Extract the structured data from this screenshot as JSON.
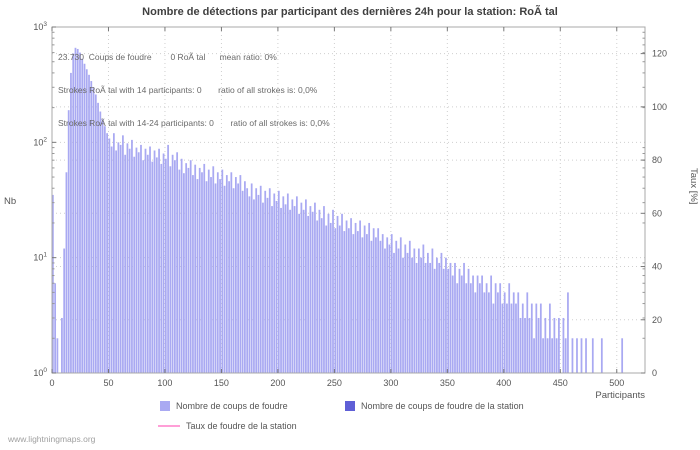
{
  "title": "Nombre de détections par participant des dernières 24h pour la station: RoÃ tal",
  "watermark": "www.lightningmaps.org",
  "annotation": {
    "line1": "23.730  Coups de foudre        0 RoÃ tal      mean ratio: 0%",
    "line2": "Strokes RoÃ tal with 14 participants: 0       ratio of all strokes is: 0,0%",
    "line3": "Strokes RoÃ tal with 14-24 participants: 0       ratio of all strokes is: 0,0%"
  },
  "axes": {
    "x": {
      "label": "Participants",
      "ticks": [
        0,
        50,
        100,
        150,
        200,
        250,
        300,
        350,
        400,
        450,
        500
      ],
      "range": [
        0,
        525
      ]
    },
    "y_left": {
      "label": "Nb",
      "ticks": [
        "10^0",
        "10^1",
        "10^2",
        "10^3"
      ],
      "scale": "log",
      "range": [
        1,
        1000
      ]
    },
    "y_right": {
      "label": "Taux [%]",
      "ticks": [
        0,
        20,
        40,
        60,
        80,
        100,
        120
      ],
      "range": [
        0,
        130
      ]
    }
  },
  "legend": [
    {
      "label": "Nombre de coups de foudre",
      "type": "square",
      "color": "#a9a9f2"
    },
    {
      "label": "Nombre de coups de foudre de la station",
      "type": "square",
      "color": "#5f5fd6"
    },
    {
      "label": "Taux de foudre de la station",
      "type": "line",
      "color": "#ff9fd7"
    }
  ],
  "colors": {
    "bars": "#a9a9f2",
    "station_bars": "#5f5fd6",
    "rate_line": "#ff9fd7",
    "grid": "#cfcfcf",
    "border": "#a8a8a8",
    "text": "#555555"
  },
  "chart_data": {
    "type": "bar",
    "title": "Nombre de détections par participant des dernières 24h pour la station: RoÃ tal",
    "xlabel": "Participants",
    "ylabel": "Nb",
    "y2label": "Taux [%]",
    "yscale": "log10",
    "xlim": [
      0,
      525
    ],
    "ylim": [
      1,
      1000
    ],
    "y2lim": [
      0,
      130
    ],
    "x_start": 0,
    "x_step": 2,
    "station_strokes": 0,
    "mean_ratio_percent": 0,
    "values": [
      35,
      6,
      2,
      1,
      3,
      12,
      55,
      190,
      400,
      590,
      660,
      645,
      600,
      530,
      480,
      430,
      385,
      340,
      300,
      260,
      220,
      185,
      158,
      138,
      120,
      108,
      92,
      120,
      85,
      100,
      95,
      115,
      78,
      98,
      88,
      105,
      75,
      90,
      82,
      95,
      70,
      88,
      78,
      92,
      68,
      85,
      74,
      88,
      65,
      80,
      72,
      95,
      62,
      78,
      70,
      82,
      58,
      72,
      54,
      66,
      60,
      70,
      52,
      64,
      48,
      60,
      55,
      65,
      46,
      58,
      50,
      62,
      44,
      55,
      48,
      58,
      42,
      52,
      46,
      55,
      40,
      50,
      44,
      52,
      38,
      46,
      40,
      34,
      44,
      32,
      40,
      35,
      42,
      30,
      38,
      33,
      40,
      28,
      36,
      31,
      38,
      27,
      34,
      29,
      36,
      26,
      32,
      28,
      34,
      24,
      30,
      26,
      32,
      23,
      28,
      25,
      30,
      21,
      26,
      22,
      28,
      19,
      24,
      20,
      26,
      18,
      23,
      19,
      24,
      17,
      21,
      18,
      22,
      16,
      20,
      17,
      21,
      15,
      19,
      16,
      20,
      14,
      18,
      15,
      18,
      14,
      16,
      12,
      15,
      13,
      16,
      11,
      14,
      12,
      15,
      10,
      13,
      11,
      14,
      10,
      12,
      9,
      12,
      10,
      13,
      9,
      11,
      9,
      12,
      8,
      10,
      9,
      11,
      8,
      10,
      8,
      9,
      7,
      9,
      6,
      8,
      7,
      9,
      6,
      8,
      6,
      7,
      5,
      7,
      6,
      7,
      5,
      6,
      5,
      7,
      4,
      6,
      5,
      6,
      4,
      5,
      4,
      6,
      4,
      5,
      4,
      5,
      3,
      4,
      3,
      5,
      3,
      4,
      2,
      4,
      3,
      4,
      2,
      3,
      2,
      4,
      2,
      3,
      2,
      3,
      1,
      3,
      2,
      5,
      1,
      2,
      0,
      2,
      1,
      2,
      1,
      2,
      0,
      1,
      2,
      0,
      1,
      0,
      2,
      1,
      0,
      1,
      0,
      1,
      0,
      1,
      0,
      2,
      0,
      1,
      0
    ]
  }
}
